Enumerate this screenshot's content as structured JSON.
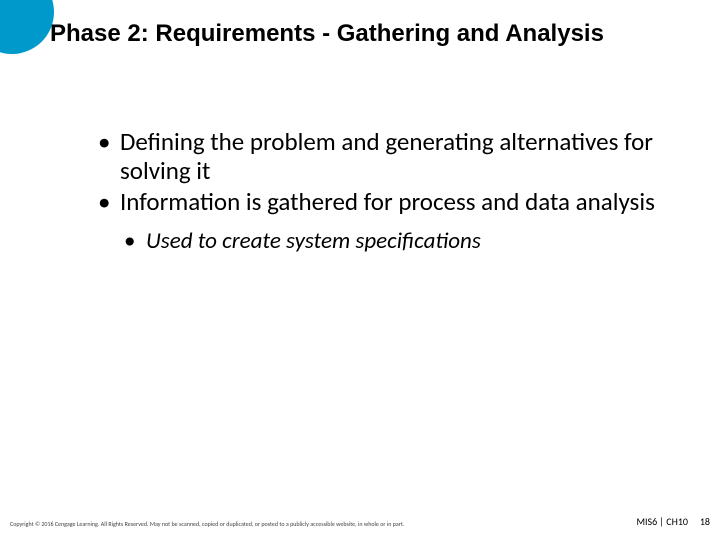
{
  "accent_color": "#0099cc",
  "title": "Phase 2: Requirements - Gathering and Analysis",
  "bullets": [
    {
      "level": 1,
      "text": "Defining the problem and generating alternatives for solving it"
    },
    {
      "level": 1,
      "text": "Information is gathered for process and data analysis"
    },
    {
      "level": 2,
      "text": "Used to create system specifications"
    }
  ],
  "footer": {
    "copyright": "Copyright © 2016 Cengage Learning. All Rights Reserved. May not be scanned, copied or duplicated, or posted to a publicly accessible website, in whole or in part.",
    "ref": "MIS6 | CH10",
    "page": "18"
  }
}
